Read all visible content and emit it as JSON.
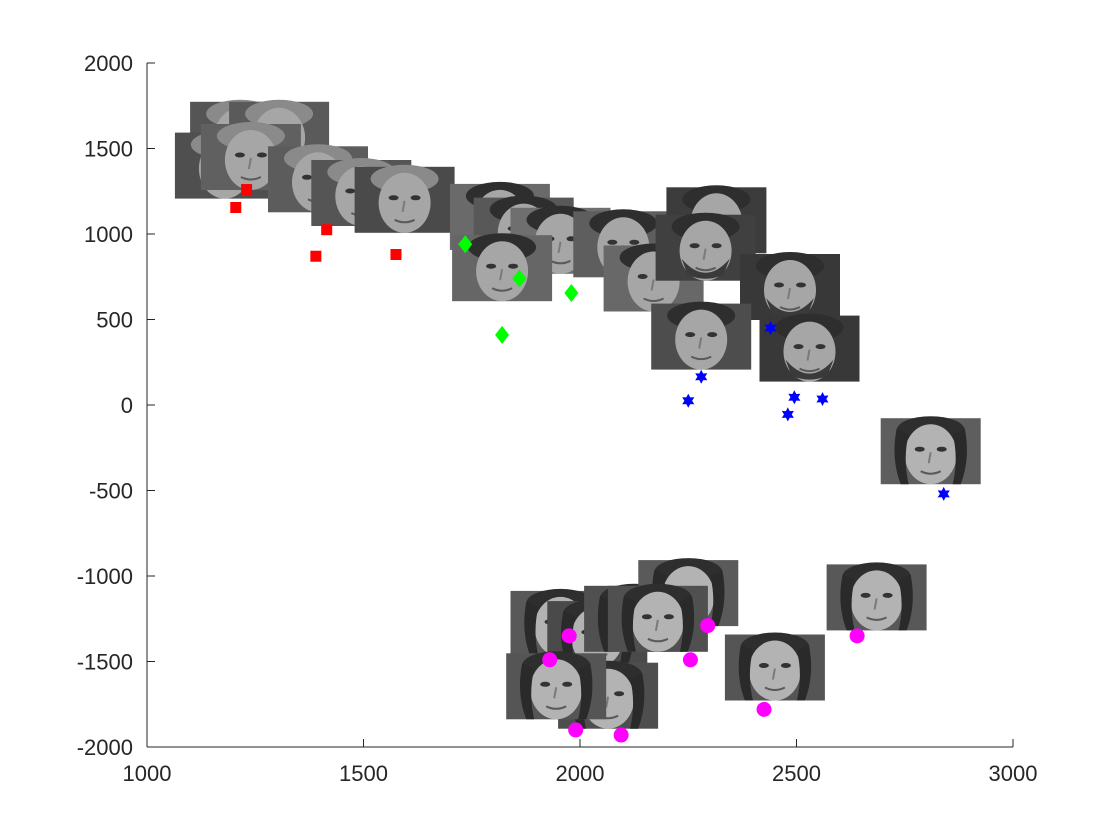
{
  "chart_data": {
    "type": "scatter",
    "title": "",
    "xlabel": "",
    "ylabel": "",
    "xlim": [
      1000,
      3000
    ],
    "ylim": [
      -2000,
      2000
    ],
    "grid": false,
    "xticks": [
      "1000",
      "1500",
      "2000",
      "2500",
      "3000"
    ],
    "yticks": [
      "2000",
      "1500",
      "1000",
      "500",
      "0",
      "-500",
      "-1000",
      "-1500",
      "-2000"
    ],
    "series": [
      {
        "marker": "square",
        "color": "#ff0000",
        "points": [
          [
            1230,
            1260
          ],
          [
            1205,
            1155
          ],
          [
            1415,
            1025
          ],
          [
            1390,
            870
          ],
          [
            1575,
            880
          ]
        ]
      },
      {
        "marker": "diamond",
        "color": "#00ff00",
        "points": [
          [
            1735,
            940
          ],
          [
            1860,
            740
          ],
          [
            1980,
            655
          ],
          [
            1820,
            410
          ]
        ]
      },
      {
        "marker": "hexagram",
        "color": "#0000ff",
        "points": [
          [
            2440,
            450
          ],
          [
            2280,
            165
          ],
          [
            2250,
            25
          ],
          [
            2495,
            45
          ],
          [
            2560,
            35
          ],
          [
            2480,
            -55
          ],
          [
            2840,
            -520
          ]
        ]
      },
      {
        "marker": "circle",
        "color": "#ff00ff",
        "points": [
          [
            1975,
            -1350
          ],
          [
            1930,
            -1490
          ],
          [
            2295,
            -1290
          ],
          [
            2255,
            -1490
          ],
          [
            2640,
            -1350
          ],
          [
            2425,
            -1780
          ],
          [
            1990,
            -1900
          ],
          [
            2095,
            -1930
          ]
        ]
      }
    ],
    "face_thumbnails": [
      {
        "x": 1215,
        "y": 1580,
        "shade": "#555555",
        "tone": "older-man"
      },
      {
        "x": 1305,
        "y": 1580,
        "shade": "#5a5a5a",
        "tone": "older-man"
      },
      {
        "x": 1180,
        "y": 1400,
        "shade": "#4f4f4f",
        "tone": "older-man"
      },
      {
        "x": 1240,
        "y": 1450,
        "shade": "#606060",
        "tone": "older-man"
      },
      {
        "x": 1395,
        "y": 1320,
        "shade": "#5c5c5c",
        "tone": "older-man"
      },
      {
        "x": 1495,
        "y": 1240,
        "shade": "#555555",
        "tone": "older-man"
      },
      {
        "x": 1595,
        "y": 1200,
        "shade": "#4a4a4a",
        "tone": "older-man"
      },
      {
        "x": 1815,
        "y": 1100,
        "shade": "#6a6a6a",
        "tone": "young-man"
      },
      {
        "x": 1870,
        "y": 1020,
        "shade": "#585858",
        "tone": "young-man"
      },
      {
        "x": 1955,
        "y": 960,
        "shade": "#6f6f6f",
        "tone": "young-man"
      },
      {
        "x": 2100,
        "y": 940,
        "shade": "#5e5e5e",
        "tone": "young-man"
      },
      {
        "x": 1820,
        "y": 800,
        "shade": "#666666",
        "tone": "young-man"
      },
      {
        "x": 2170,
        "y": 740,
        "shade": "#686868",
        "tone": "young-man"
      },
      {
        "x": 2315,
        "y": 1080,
        "shade": "#3c3c3c",
        "tone": "bearded-man"
      },
      {
        "x": 2290,
        "y": 920,
        "shade": "#404040",
        "tone": "bearded-man"
      },
      {
        "x": 2485,
        "y": 690,
        "shade": "#383838",
        "tone": "bearded-man"
      },
      {
        "x": 2280,
        "y": 400,
        "shade": "#4d4d4d",
        "tone": "young-man"
      },
      {
        "x": 2530,
        "y": 330,
        "shade": "#383838",
        "tone": "bearded-man"
      },
      {
        "x": 2810,
        "y": -270,
        "shade": "#5e5e5e",
        "tone": "woman"
      },
      {
        "x": 1955,
        "y": -1280,
        "shade": "#585858",
        "tone": "woman"
      },
      {
        "x": 2040,
        "y": -1340,
        "shade": "#4a4a4a",
        "tone": "woman"
      },
      {
        "x": 2125,
        "y": -1250,
        "shade": "#505050",
        "tone": "woman"
      },
      {
        "x": 2250,
        "y": -1100,
        "shade": "#5a5a5a",
        "tone": "woman"
      },
      {
        "x": 2180,
        "y": -1250,
        "shade": "#505050",
        "tone": "woman"
      },
      {
        "x": 2685,
        "y": -1125,
        "shade": "#585858",
        "tone": "woman"
      },
      {
        "x": 2450,
        "y": -1535,
        "shade": "#555555",
        "tone": "woman"
      },
      {
        "x": 2065,
        "y": -1700,
        "shade": "#4e4e4e",
        "tone": "woman"
      },
      {
        "x": 1945,
        "y": -1645,
        "shade": "#555555",
        "tone": "woman"
      }
    ]
  }
}
